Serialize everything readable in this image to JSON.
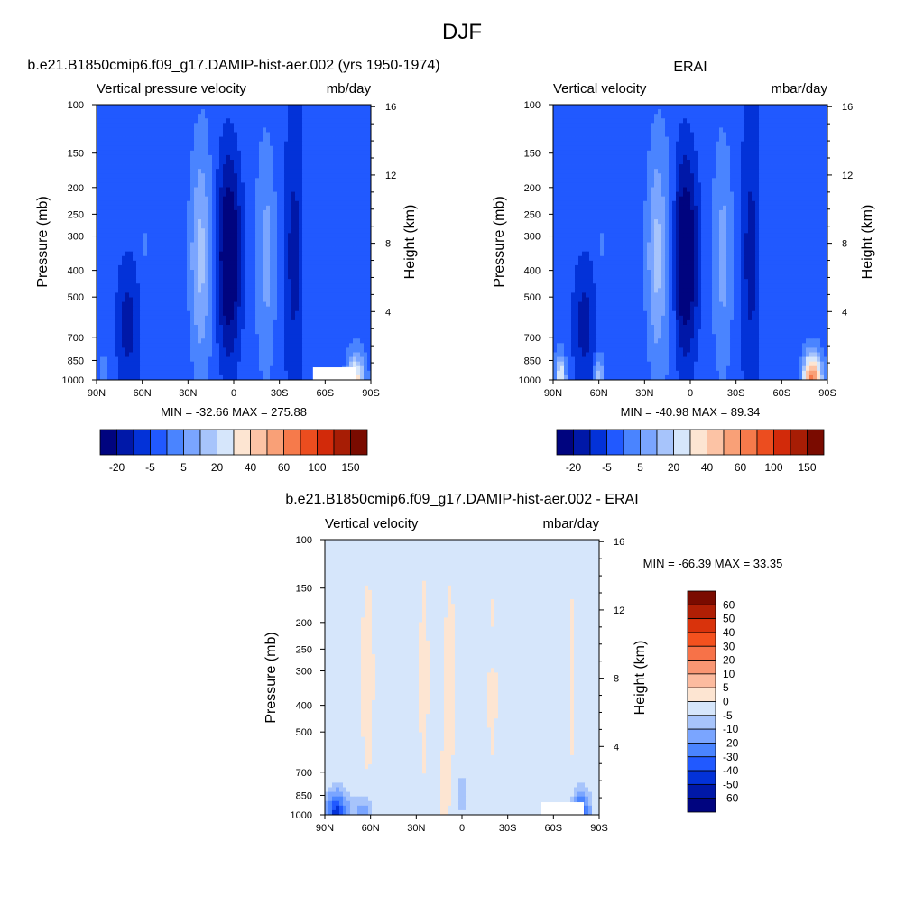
{
  "main_title": "DJF",
  "panels": [
    {
      "id": "model",
      "title": "b.e21.B1850cmip6.f09_g17.DAMIP-hist-aer.002 (yrs 1950-1974)",
      "left_label": "Vertical pressure velocity",
      "right_label": "mb/day",
      "ylabel": "Pressure (mb)",
      "y2label": "Height (km)",
      "stats": "MIN = -32.66  MAX = 275.88"
    },
    {
      "id": "obs",
      "title": "ERAI",
      "left_label": "Vertical velocity",
      "right_label": "mbar/day",
      "ylabel": "Pressure (mb)",
      "y2label": "Height (km)",
      "stats": "MIN = -40.98  MAX =  89.34"
    },
    {
      "id": "diff",
      "title": "b.e21.B1850cmip6.f09_g17.DAMIP-hist-aer.002 - ERAI",
      "left_label": "Vertical velocity",
      "right_label": "mbar/day",
      "ylabel": "Pressure (mb)",
      "y2label": "Height (km)",
      "stats": "MIN = -66.39  MAX =  33.35"
    }
  ],
  "chart_data": [
    {
      "type": "heatmap",
      "panel": "model",
      "x_ticks": [
        "90N",
        "60N",
        "30N",
        "0",
        "30S",
        "60S",
        "90S"
      ],
      "x_values": [
        90,
        60,
        30,
        0,
        -30,
        -60,
        -90
      ],
      "y_ticks": [
        "100",
        "150",
        "200",
        "250",
        "300",
        "400",
        "500",
        "700",
        "850",
        "1000"
      ],
      "y_values": [
        100,
        150,
        200,
        250,
        300,
        400,
        500,
        700,
        850,
        1000
      ],
      "y_scale": "log",
      "ylim": [
        1000,
        100
      ],
      "y2_ticks": [
        "4",
        "8",
        "12",
        "16"
      ],
      "y2_values": [
        4,
        8,
        12,
        16
      ],
      "colorbar": {
        "orientation": "horizontal",
        "tick_labels": [
          "-20",
          "-5",
          "5",
          "20",
          "40",
          "60",
          "100",
          "150"
        ],
        "colors": [
          "#00047f",
          "#0018a8",
          "#0332d8",
          "#2159ff",
          "#4a84ff",
          "#7aa5ff",
          "#a7c4fb",
          "#d6e6fb",
          "#fde5d2",
          "#fcc3a5",
          "#f9a077",
          "#f67a4b",
          "#ec4d1f",
          "#d22a0a",
          "#a71d05",
          "#7a0b00"
        ]
      }
    },
    {
      "type": "heatmap",
      "panel": "obs",
      "x_ticks": [
        "90N",
        "60N",
        "30N",
        "0",
        "30S",
        "60S",
        "90S"
      ],
      "x_values": [
        90,
        60,
        30,
        0,
        -30,
        -60,
        -90
      ],
      "y_ticks": [
        "100",
        "150",
        "200",
        "250",
        "300",
        "400",
        "500",
        "700",
        "850",
        "1000"
      ],
      "y_values": [
        100,
        150,
        200,
        250,
        300,
        400,
        500,
        700,
        850,
        1000
      ],
      "y_scale": "log",
      "ylim": [
        1000,
        100
      ],
      "y2_ticks": [
        "4",
        "8",
        "12",
        "16"
      ],
      "y2_values": [
        4,
        8,
        12,
        16
      ],
      "colorbar": {
        "orientation": "horizontal",
        "tick_labels": [
          "-20",
          "-5",
          "5",
          "20",
          "40",
          "60",
          "100",
          "150"
        ],
        "colors": [
          "#00047f",
          "#0018a8",
          "#0332d8",
          "#2159ff",
          "#4a84ff",
          "#7aa5ff",
          "#a7c4fb",
          "#d6e6fb",
          "#fde5d2",
          "#fcc3a5",
          "#f9a077",
          "#f67a4b",
          "#ec4d1f",
          "#d22a0a",
          "#a71d05",
          "#7a0b00"
        ]
      }
    },
    {
      "type": "heatmap",
      "panel": "diff",
      "x_ticks": [
        "90N",
        "60N",
        "30N",
        "0",
        "30S",
        "60S",
        "90S"
      ],
      "x_values": [
        90,
        60,
        30,
        0,
        -30,
        -60,
        -90
      ],
      "y_ticks": [
        "100",
        "150",
        "200",
        "250",
        "300",
        "400",
        "500",
        "700",
        "850",
        "1000"
      ],
      "y_values": [
        100,
        150,
        200,
        250,
        300,
        400,
        500,
        700,
        850,
        1000
      ],
      "y_scale": "log",
      "ylim": [
        1000,
        100
      ],
      "y2_ticks": [
        "4",
        "8",
        "12",
        "16"
      ],
      "y2_values": [
        4,
        8,
        12,
        16
      ],
      "colorbar": {
        "orientation": "vertical",
        "tick_labels": [
          "60",
          "50",
          "40",
          "30",
          "20",
          "10",
          "5",
          "0",
          "-5",
          "-10",
          "-20",
          "-30",
          "-40",
          "-50",
          "-60"
        ],
        "colors": [
          "#7a0b00",
          "#b01f05",
          "#d9330c",
          "#f4511e",
          "#f77248",
          "#f99673",
          "#fcbb9f",
          "#fde5d2",
          "#d6e6fb",
          "#a7c4fb",
          "#7aa5ff",
          "#4a84ff",
          "#2159ff",
          "#0332d8",
          "#0018a8",
          "#00047f"
        ]
      }
    }
  ]
}
